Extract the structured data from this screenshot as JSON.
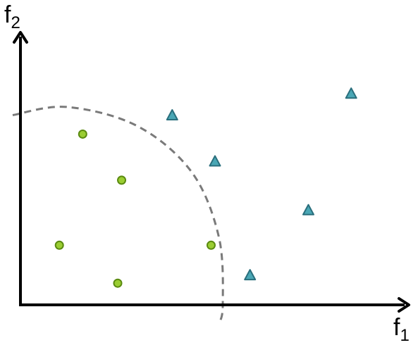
{
  "axes": {
    "x_label": "f",
    "x_subscript": "1",
    "y_label": "f",
    "y_subscript": "2"
  },
  "colors": {
    "axis": "#000000",
    "boundary": "#7a7a7a",
    "circle_fill": "#9acd32",
    "circle_stroke": "#5a8a10",
    "triangle_fill": "#4aa7b5",
    "triangle_stroke": "#2a6f7d"
  },
  "chart_data": {
    "type": "scatter",
    "xlim": [
      0,
      10
    ],
    "ylim": [
      0,
      10
    ],
    "decision_boundary": {
      "style": "dashed",
      "shape": "arc",
      "points": [
        [
          -0.2,
          7.0
        ],
        [
          1.2,
          7.3
        ],
        [
          3.0,
          6.6
        ],
        [
          4.4,
          4.9
        ],
        [
          5.1,
          2.5
        ],
        [
          5.2,
          0
        ],
        [
          5.1,
          -0.7
        ]
      ]
    },
    "series": [
      {
        "marker": "circle",
        "points": [
          [
            1.6,
            6.3
          ],
          [
            2.6,
            4.6
          ],
          [
            1.0,
            2.2
          ],
          [
            2.5,
            0.8
          ],
          [
            4.9,
            2.2
          ]
        ]
      },
      {
        "marker": "triangle",
        "points": [
          [
            3.9,
            7.0
          ],
          [
            5.0,
            5.3
          ],
          [
            8.5,
            7.8
          ],
          [
            7.4,
            3.5
          ],
          [
            5.9,
            1.1
          ]
        ]
      }
    ]
  }
}
